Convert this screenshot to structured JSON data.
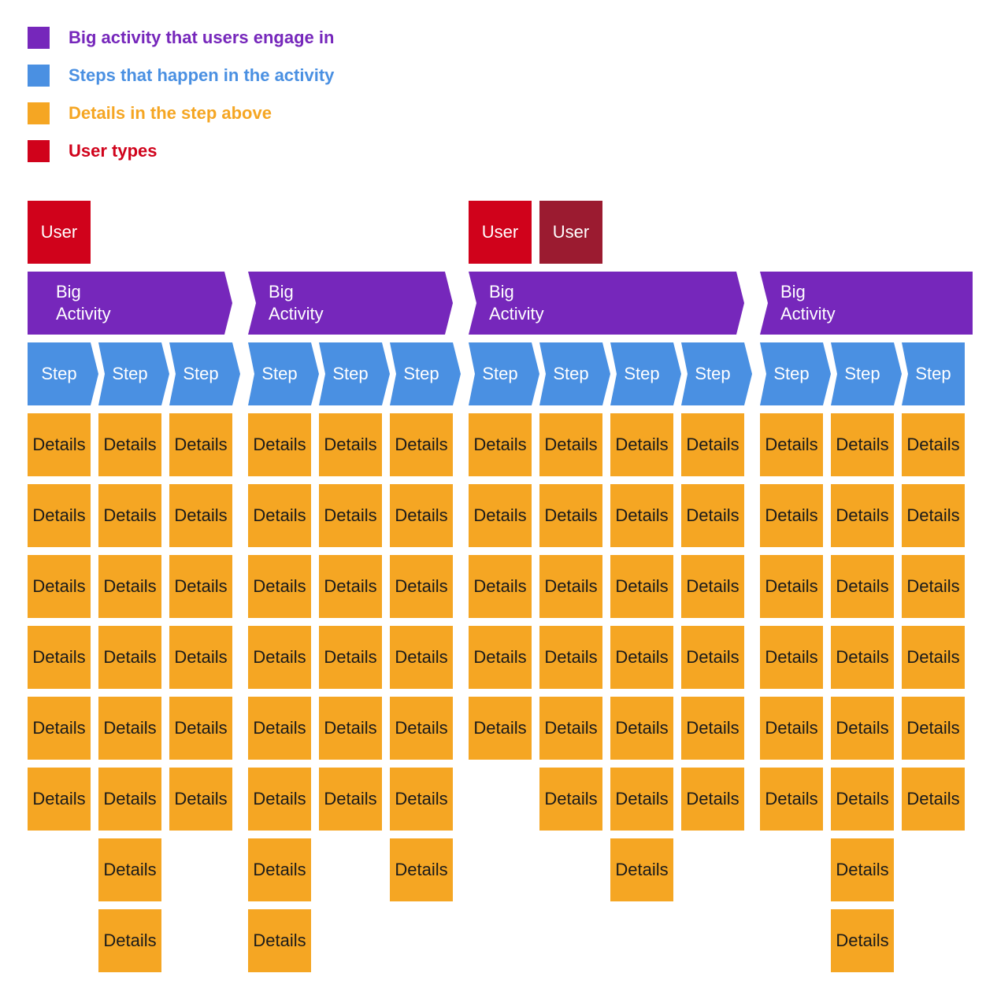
{
  "colors": {
    "activity": "#7627bb",
    "step": "#4a90e2",
    "detail": "#f5a623",
    "user": "#d0021b",
    "user_alt": "#9b1b30"
  },
  "legend": [
    {
      "label": "Big activity that users engage in",
      "color": "#7627bb"
    },
    {
      "label": "Steps that happen in the activity",
      "color": "#4a90e2"
    },
    {
      "label": "Details in the step above",
      "color": "#f5a623"
    },
    {
      "label": "User types",
      "color": "#d0021b"
    }
  ],
  "activities": [
    {
      "label": "Big\nActivity",
      "users": [
        {
          "label": "User",
          "color": "#d0021b"
        }
      ],
      "steps": [
        {
          "label": "Step",
          "details": [
            "Details",
            "Details",
            "Details",
            "Details",
            "Details",
            "Details"
          ]
        },
        {
          "label": "Step",
          "details": [
            "Details",
            "Details",
            "Details",
            "Details",
            "Details",
            "Details",
            "Details",
            "Details"
          ]
        },
        {
          "label": "Step",
          "details": [
            "Details",
            "Details",
            "Details",
            "Details",
            "Details",
            "Details"
          ]
        }
      ]
    },
    {
      "label": "Big\nActivity",
      "users": [],
      "steps": [
        {
          "label": "Step",
          "details": [
            "Details",
            "Details",
            "Details",
            "Details",
            "Details",
            "Details",
            "Details",
            "Details"
          ]
        },
        {
          "label": "Step",
          "details": [
            "Details",
            "Details",
            "Details",
            "Details",
            "Details",
            "Details"
          ]
        },
        {
          "label": "Step",
          "details": [
            "Details",
            "Details",
            "Details",
            "Details",
            "Details",
            "Details",
            "Details"
          ]
        }
      ]
    },
    {
      "label": "Big\nActivity",
      "users": [
        {
          "label": "User",
          "color": "#d0021b"
        },
        {
          "label": "User",
          "color": "#9b1b30"
        }
      ],
      "steps": [
        {
          "label": "Step",
          "details": [
            "Details",
            "Details",
            "Details",
            "Details",
            "Details"
          ]
        },
        {
          "label": "Step",
          "details": [
            "Details",
            "Details",
            "Details",
            "Details",
            "Details",
            "Details"
          ]
        },
        {
          "label": "Step",
          "details": [
            "Details",
            "Details",
            "Details",
            "Details",
            "Details",
            "Details",
            "Details"
          ]
        },
        {
          "label": "Step",
          "details": [
            "Details",
            "Details",
            "Details",
            "Details",
            "Details",
            "Details"
          ]
        }
      ]
    },
    {
      "label": "Big\nActivity",
      "users": [],
      "steps": [
        {
          "label": "Step",
          "details": [
            "Details",
            "Details",
            "Details",
            "Details",
            "Details",
            "Details"
          ]
        },
        {
          "label": "Step",
          "details": [
            "Details",
            "Details",
            "Details",
            "Details",
            "Details",
            "Details",
            "Details",
            "Details"
          ]
        },
        {
          "label": "Step",
          "details": [
            "Details",
            "Details",
            "Details",
            "Details",
            "Details",
            "Details"
          ]
        }
      ]
    }
  ]
}
